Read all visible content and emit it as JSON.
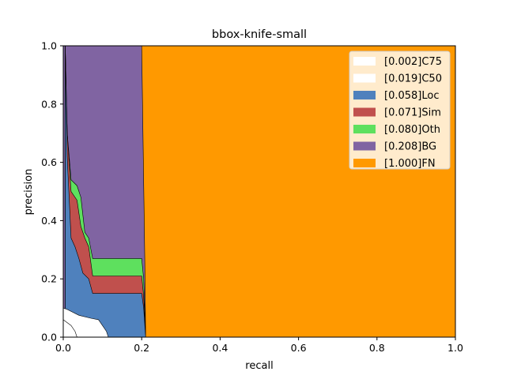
{
  "chart_data": {
    "type": "area",
    "title": "bbox-knife-small",
    "xlabel": "recall",
    "ylabel": "precision",
    "xlim": [
      0,
      1
    ],
    "ylim": [
      0,
      1
    ],
    "xticks": [
      "0.0",
      "0.2",
      "0.4",
      "0.6",
      "0.8",
      "1.0"
    ],
    "yticks": [
      "0.0",
      "0.2",
      "0.4",
      "0.6",
      "0.8",
      "1.0"
    ],
    "grid": false,
    "legend_position": "top-right",
    "series": [
      {
        "name": "[1.000]FN",
        "color": "#ff9900",
        "points": [
          [
            0,
            1
          ],
          [
            1,
            1
          ]
        ]
      },
      {
        "name": "[0.208]BG",
        "color": "#8064a2",
        "points": [
          [
            0,
            1
          ],
          [
            0.2,
            1
          ],
          [
            0.208,
            0.25
          ],
          [
            0.21,
            0
          ]
        ]
      },
      {
        "name": "[0.080]Oth",
        "color": "#5ee05e",
        "points": [
          [
            0.005,
            1
          ],
          [
            0.01,
            0.7
          ],
          [
            0.02,
            0.54
          ],
          [
            0.035,
            0.52
          ],
          [
            0.045,
            0.48
          ],
          [
            0.055,
            0.36
          ],
          [
            0.065,
            0.34
          ],
          [
            0.075,
            0.27
          ],
          [
            0.2,
            0.27
          ],
          [
            0.205,
            0.2
          ],
          [
            0.21,
            0
          ]
        ]
      },
      {
        "name": "[0.071]Sim",
        "color": "#c0504d",
        "points": [
          [
            0.005,
            1
          ],
          [
            0.01,
            0.7
          ],
          [
            0.02,
            0.5
          ],
          [
            0.035,
            0.47
          ],
          [
            0.045,
            0.38
          ],
          [
            0.055,
            0.34
          ],
          [
            0.065,
            0.31
          ],
          [
            0.075,
            0.21
          ],
          [
            0.2,
            0.21
          ],
          [
            0.205,
            0.14
          ],
          [
            0.21,
            0
          ]
        ]
      },
      {
        "name": "[0.058]Loc",
        "color": "#4f81bd",
        "points": [
          [
            0.005,
            1
          ],
          [
            0.01,
            0.62
          ],
          [
            0.02,
            0.34
          ],
          [
            0.03,
            0.31
          ],
          [
            0.04,
            0.27
          ],
          [
            0.05,
            0.22
          ],
          [
            0.065,
            0.2
          ],
          [
            0.075,
            0.15
          ],
          [
            0.2,
            0.15
          ],
          [
            0.205,
            0.1
          ],
          [
            0.21,
            0
          ]
        ]
      },
      {
        "name": "[0.019]C50",
        "color": "#ffffff",
        "points": [
          [
            0,
            0.1
          ],
          [
            0.01,
            0.095
          ],
          [
            0.04,
            0.075
          ],
          [
            0.07,
            0.065
          ],
          [
            0.09,
            0.06
          ],
          [
            0.11,
            0.02
          ],
          [
            0.115,
            0
          ]
        ]
      },
      {
        "name": "[0.002]C75",
        "color": "#ffffff",
        "points": [
          [
            0,
            0.06
          ],
          [
            0.01,
            0.05
          ],
          [
            0.02,
            0.04
          ],
          [
            0.03,
            0.02
          ],
          [
            0.035,
            0.0
          ]
        ]
      }
    ],
    "legend_order": [
      "[0.002]C75",
      "[0.019]C50",
      "[0.058]Loc",
      "[0.071]Sim",
      "[0.080]Oth",
      "[0.208]BG",
      "[1.000]FN"
    ]
  }
}
